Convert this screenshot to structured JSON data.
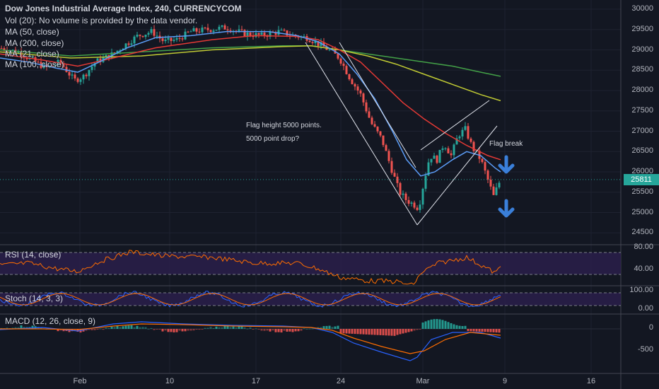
{
  "legend": {
    "title": "Dow Jones Industrial Average Index, 240, CURRENCYCOM",
    "vol": "Vol (20): No volume is provided by the data vendor.",
    "ma50": "MA (50, close)",
    "ma200": "MA (200, close)",
    "ma21": "MA (21, close)",
    "ma100": "MA (100, close)"
  },
  "annotations": {
    "flag_height": "Flag height 5000 points.",
    "drop": "5000 point drop?",
    "flag_break": "Flag break"
  },
  "panes": {
    "rsi": "RSI (14, close)",
    "stoch": "Stoch (14, 3, 3)",
    "macd": "MACD (12, 26, close, 9)"
  },
  "price_axis": [
    "30000",
    "29500",
    "29000",
    "28500",
    "28000",
    "27500",
    "27000",
    "26500",
    "26000",
    "25500",
    "25000",
    "24500"
  ],
  "current_price": "25811",
  "rsi_axis": [
    "80.00",
    "40.00"
  ],
  "stoch_axis": [
    "100.00",
    "0.00"
  ],
  "macd_axis": [
    "0",
    "-500"
  ],
  "time_axis": [
    "Feb",
    "10",
    "17",
    "24",
    "Mar",
    "9",
    "16"
  ],
  "colors": {
    "background": "#131722",
    "up": "#26a69a",
    "down": "#ef5350",
    "ma21": "#5b9cf6",
    "ma50": "#e53935",
    "ma100": "#c0ca33",
    "ma200": "#43a047",
    "arrow": "#3a7fd9"
  },
  "chart_data": {
    "type": "candlestick",
    "symbol": "Dow Jones Industrial Average Index",
    "interval": "240",
    "price_range": [
      24300,
      30150
    ],
    "key_points": [
      {
        "label": "start",
        "price": 29000
      },
      {
        "label": "Feb low",
        "price": 28200
      },
      {
        "label": "Feb high",
        "price": 29500
      },
      {
        "label": "drop start",
        "price": 29150
      },
      {
        "label": "low",
        "price": 24700
      },
      {
        "label": "rebound high",
        "price": 27050
      },
      {
        "label": "last",
        "price": 25811
      }
    ],
    "ma_last": {
      "ma200": 28350,
      "ma100": 27750,
      "ma50": 26300,
      "ma21": 26000
    },
    "rsi_range": [
      0,
      100
    ],
    "stoch_range": [
      0,
      100
    ]
  }
}
